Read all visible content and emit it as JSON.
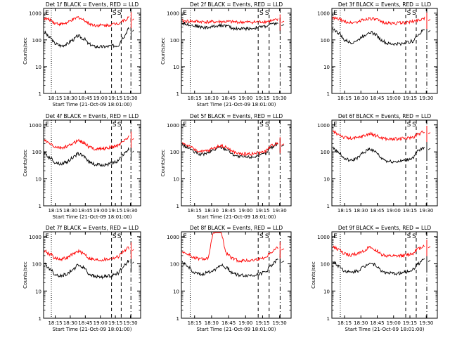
{
  "chart_data": [
    {
      "type": "line",
      "title": "Det 1f BLACK = Events, RED = LLD",
      "xlabel": "Start Time (21-Oct-09 18:01:00)",
      "ylabel": "Counts/sec",
      "xtick_labels": [
        "18:15",
        "18:30",
        "18:45",
        "19:00",
        "19:15",
        "19:30"
      ],
      "ytick_labels": [
        "1",
        "10",
        "100",
        "1000"
      ],
      "ylim": [
        1,
        1500
      ],
      "ylog": true,
      "markers": [
        "S",
        "S"
      ],
      "series": [
        {
          "name": "Events",
          "color": "#000000",
          "values": [
            190,
            120,
            72,
            60,
            70,
            100,
            140,
            110,
            68,
            56,
            55,
            56,
            60,
            62,
            130,
            260
          ]
        },
        {
          "name": "LLD",
          "color": "#ff0000",
          "values": [
            640,
            560,
            420,
            390,
            430,
            560,
            700,
            560,
            400,
            350,
            350,
            350,
            380,
            420,
            520,
            680
          ]
        }
      ]
    },
    {
      "type": "line",
      "title": "Det 2f BLACK = Events, RED = LLD",
      "xlabel": "Start Time (21-Oct-09 18:01:00)",
      "ylabel": "Counts/sec",
      "xtick_labels": [
        "18:15",
        "18:30",
        "18:45",
        "19:00",
        "19:15",
        "19:30"
      ],
      "ytick_labels": [
        "1",
        "10",
        "100",
        "1000"
      ],
      "ylim": [
        1,
        1500
      ],
      "ylog": true,
      "markers": [
        "S",
        "S"
      ],
      "series": [
        {
          "name": "Events",
          "color": "#000000",
          "values": [
            430,
            380,
            340,
            300,
            290,
            320,
            360,
            330,
            270,
            260,
            265,
            270,
            300,
            320,
            380,
            420
          ]
        },
        {
          "name": "LLD",
          "color": "#ff0000",
          "values": [
            500,
            500,
            490,
            480,
            470,
            470,
            480,
            480,
            470,
            460,
            460,
            460,
            470,
            480,
            520,
            560
          ]
        }
      ]
    },
    {
      "type": "line",
      "title": "Det 3f BLACK = Events, RED = LLD",
      "xlabel": "",
      "ylabel": "",
      "xtick_labels": [
        "18:15",
        "18:30",
        "18:45",
        "19:00",
        "19:15",
        "19:30"
      ],
      "ytick_labels": [
        "1",
        "10",
        "100",
        "1000"
      ],
      "ylim": [
        1,
        1500
      ],
      "ylog": true,
      "markers": [
        "S",
        "S"
      ],
      "series": [
        {
          "name": "Events",
          "color": "#000000",
          "values": [
            260,
            180,
            95,
            80,
            95,
            140,
            200,
            160,
            95,
            72,
            70,
            72,
            80,
            90,
            160,
            250
          ]
        },
        {
          "name": "LLD",
          "color": "#ff0000",
          "values": [
            650,
            600,
            480,
            440,
            470,
            560,
            640,
            580,
            470,
            420,
            420,
            430,
            450,
            480,
            560,
            650
          ]
        }
      ]
    },
    {
      "type": "line",
      "title": "Det 4f BLACK = Events, RED = LLD",
      "xlabel": "Start Time (21-Oct-09 18:01:00)",
      "ylabel": "Counts/sec",
      "xtick_labels": [
        "18:15",
        "18:30",
        "18:45",
        "19:00",
        "19:15",
        "19:30"
      ],
      "ytick_labels": [
        "1",
        "10",
        "100",
        "1000"
      ],
      "ylim": [
        1,
        1500
      ],
      "ylog": true,
      "markers": [
        "S",
        "S"
      ],
      "series": [
        {
          "name": "Events",
          "color": "#000000",
          "values": [
            90,
            60,
            40,
            36,
            42,
            60,
            85,
            70,
            42,
            34,
            33,
            34,
            38,
            45,
            80,
            120
          ]
        },
        {
          "name": "LLD",
          "color": "#ff0000",
          "values": [
            260,
            200,
            150,
            140,
            155,
            200,
            270,
            220,
            150,
            130,
            130,
            135,
            150,
            170,
            260,
            350
          ]
        }
      ]
    },
    {
      "type": "line",
      "title": "Det 5f BLACK = Events, RED = LLD",
      "xlabel": "Start Time (21-Oct-09 18:01:00)",
      "ylabel": "Counts/sec",
      "xtick_labels": [
        "18:15",
        "18:30",
        "18:45",
        "19:00",
        "19:15",
        "19:30"
      ],
      "ytick_labels": [
        "1",
        "10",
        "100",
        "1000"
      ],
      "ylim": [
        1,
        1500
      ],
      "ylog": true,
      "markers": [
        "S",
        "S"
      ],
      "series": [
        {
          "name": "Events",
          "color": "#000000",
          "values": [
            180,
            140,
            95,
            80,
            90,
            120,
            150,
            125,
            80,
            65,
            64,
            65,
            72,
            85,
            150,
            200
          ]
        },
        {
          "name": "LLD",
          "color": "#ff0000",
          "values": [
            210,
            170,
            120,
            100,
            110,
            140,
            170,
            145,
            100,
            85,
            84,
            85,
            92,
            105,
            170,
            220
          ]
        }
      ]
    },
    {
      "type": "line",
      "title": "Det 6f BLACK = Events, RED = LLD",
      "xlabel": "",
      "ylabel": "",
      "xtick_labels": [
        "18:15",
        "18:30",
        "18:45",
        "19:00",
        "19:15",
        "19:30"
      ],
      "ytick_labels": [
        "1",
        "10",
        "100",
        "1000"
      ],
      "ylim": [
        1,
        1500
      ],
      "ylog": true,
      "markers": [
        "S",
        "S"
      ],
      "series": [
        {
          "name": "Events",
          "color": "#000000",
          "values": [
            140,
            95,
            55,
            48,
            60,
            90,
            130,
            100,
            58,
            45,
            44,
            45,
            50,
            60,
            110,
            150
          ]
        },
        {
          "name": "LLD",
          "color": "#ff0000",
          "values": [
            560,
            450,
            340,
            310,
            330,
            390,
            470,
            400,
            330,
            300,
            300,
            305,
            320,
            350,
            460,
            580
          ]
        }
      ]
    },
    {
      "type": "line",
      "title": "Det 7f BLACK = Events, RED = LLD",
      "xlabel": "Start Time (21-Oct-09 18:01:00)",
      "ylabel": "Counts/sec",
      "xtick_labels": [
        "18:15",
        "18:30",
        "18:45",
        "19:00",
        "19:15",
        "19:30"
      ],
      "ytick_labels": [
        "1",
        "10",
        "100",
        "1000"
      ],
      "ylim": [
        1,
        1500
      ],
      "ylog": true,
      "markers": [
        "S",
        "S"
      ],
      "series": [
        {
          "name": "Events",
          "color": "#000000",
          "values": [
            100,
            65,
            40,
            36,
            42,
            60,
            90,
            72,
            42,
            34,
            33,
            34,
            38,
            45,
            80,
            130
          ]
        },
        {
          "name": "LLD",
          "color": "#ff0000",
          "values": [
            300,
            230,
            160,
            150,
            165,
            220,
            290,
            240,
            160,
            140,
            140,
            145,
            160,
            180,
            280,
            380
          ]
        }
      ]
    },
    {
      "type": "line",
      "title": "Det 8f BLACK = Events, RED = LLD",
      "xlabel": "Start Time (21-Oct-09 18:01:00)",
      "ylabel": "",
      "xtick_labels": [
        "18:15",
        "18:30",
        "18:45",
        "19:00",
        "19:15",
        "19:30"
      ],
      "ytick_labels": [
        "1",
        "10",
        "100",
        "1000"
      ],
      "ylim": [
        1,
        1500
      ],
      "ylog": true,
      "markers": [
        "S",
        "S"
      ],
      "series": [
        {
          "name": "Events",
          "color": "#000000",
          "values": [
            110,
            75,
            45,
            40,
            48,
            60,
            90,
            70,
            45,
            38,
            37,
            38,
            42,
            50,
            90,
            140
          ]
        },
        {
          "name": "LLD",
          "color": "#ff0000",
          "values": [
            280,
            220,
            160,
            150,
            160,
            1500,
            1500,
            230,
            150,
            130,
            130,
            135,
            150,
            170,
            280,
            400
          ]
        }
      ]
    },
    {
      "type": "line",
      "title": "Det 9f BLACK = Events, RED = LLD",
      "xlabel": "Start Time (21-Oct-09 18:01:00)",
      "ylabel": "Counts/sec",
      "xtick_labels": [
        "18:15",
        "18:30",
        "18:45",
        "19:00",
        "19:15",
        "19:30"
      ],
      "ytick_labels": [
        "1",
        "10",
        "100",
        "1000"
      ],
      "ylim": [
        1,
        1500
      ],
      "ylog": true,
      "markers": [
        "S",
        "S"
      ],
      "series": [
        {
          "name": "Events",
          "color": "#000000",
          "values": [
            120,
            85,
            55,
            48,
            55,
            75,
            110,
            90,
            55,
            45,
            44,
            45,
            50,
            60,
            105,
            150
          ]
        },
        {
          "name": "LLD",
          "color": "#ff0000",
          "values": [
            420,
            330,
            230,
            210,
            230,
            300,
            390,
            320,
            220,
            190,
            190,
            195,
            210,
            240,
            360,
            480
          ]
        }
      ]
    }
  ]
}
